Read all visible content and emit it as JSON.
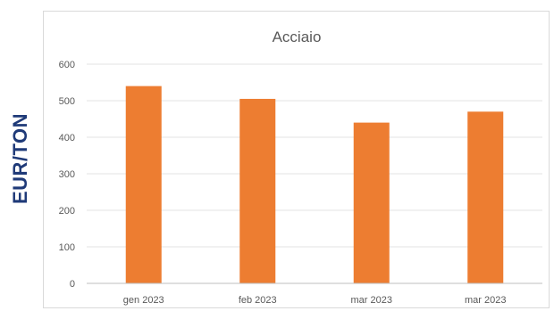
{
  "ylabel": "EUR/TON",
  "chart_data": {
    "type": "bar",
    "title": "Acciaio",
    "xlabel": "",
    "ylabel": "EUR/TON",
    "categories": [
      "gen 2023",
      "feb 2023",
      "mar 2023",
      "mar 2023"
    ],
    "values": [
      540,
      505,
      440,
      470
    ],
    "ylim": [
      0,
      600
    ],
    "yticks": [
      0,
      100,
      200,
      300,
      400,
      500,
      600
    ],
    "grid": true,
    "legend": "none",
    "bar_color": "#ED7D31"
  }
}
